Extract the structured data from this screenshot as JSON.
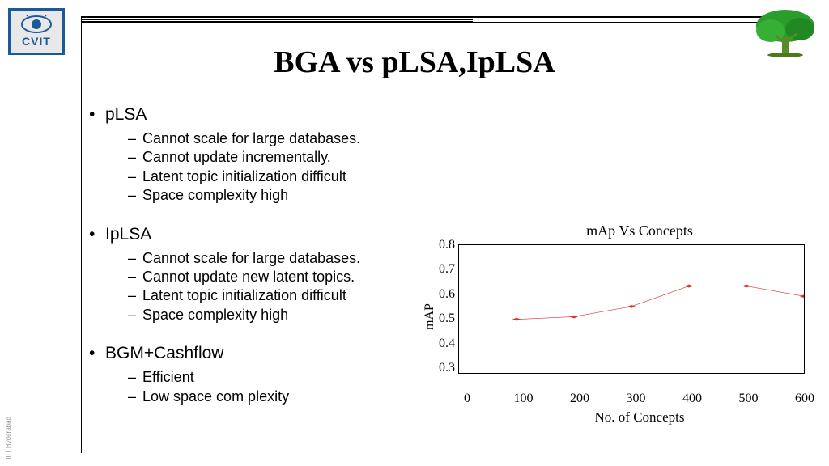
{
  "logo": {
    "text": "CVIT"
  },
  "title": "BGA vs pLSA,IpLSA",
  "sections": [
    {
      "head": "pLSA",
      "items": [
        "Cannot scale for large databases.",
        "Cannot update incrementally.",
        "Latent topic initialization difficult",
        "Space complexity high"
      ]
    },
    {
      "head": "IpLSA",
      "items": [
        "Cannot scale for large databases.",
        "Cannot update new latent topics.",
        "Latent topic initialization difficult",
        "Space complexity high"
      ]
    },
    {
      "head": "BGM+Cashflow",
      "items": [
        "Efficient",
        "Low space com plexity"
      ]
    }
  ],
  "chart": {
    "type": "line",
    "title": "mAp Vs Concepts",
    "xlabel": "No. of Concepts",
    "ylabel": "mAP",
    "xlim": [
      0,
      600
    ],
    "ylim": [
      0.3,
      0.8
    ],
    "xticks": [
      0,
      100,
      200,
      300,
      400,
      500,
      600
    ],
    "yticks": [
      0.8,
      0.7,
      0.6,
      0.5,
      0.4,
      0.3
    ],
    "line_color": "#e03030",
    "marker_color": "#e03030",
    "marker_style": "diamond",
    "line_width": 1,
    "background_color": "#ffffff",
    "border_color": "#000000",
    "title_fontsize": 18,
    "label_fontsize": 16,
    "tick_fontsize": 16,
    "x": [
      100,
      200,
      300,
      400,
      500,
      600
    ],
    "y": [
      0.51,
      0.52,
      0.56,
      0.64,
      0.64,
      0.6
    ]
  },
  "footer": "IIIT Hyderabad"
}
